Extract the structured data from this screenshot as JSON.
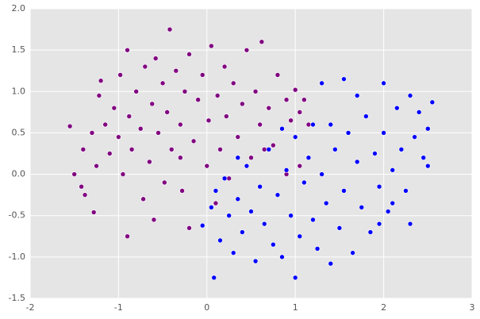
{
  "chart_data": {
    "type": "scatter",
    "xlim": [
      -2,
      3
    ],
    "ylim": [
      -1.5,
      2
    ],
    "xticks": [
      -2,
      -1,
      0,
      1,
      2,
      3
    ],
    "yticks": [
      -1.5,
      {
        "value": -1,
        "label": "-1.0"
      },
      -0.5,
      {
        "value": 0,
        "label": "0.0"
      },
      0.5,
      {
        "value": 1,
        "label": "1.0"
      },
      1.5,
      {
        "value": 2,
        "label": "2.0"
      }
    ],
    "grid": true,
    "series": [
      {
        "color": "#800080",
        "x": [
          -1.55,
          -1.5,
          -1.42,
          -1.4,
          -1.38,
          -1.3,
          -1.28,
          -1.25,
          -1.22,
          -1.2,
          -1.15,
          -1.1,
          -1.05,
          -1.0,
          -0.98,
          -0.95,
          -0.9,
          -0.9,
          -0.88,
          -0.85,
          -0.8,
          -0.75,
          -0.72,
          -0.7,
          -0.65,
          -0.62,
          -0.6,
          -0.58,
          -0.55,
          -0.5,
          -0.48,
          -0.45,
          -0.42,
          -0.4,
          -0.35,
          -0.3,
          -0.28,
          -0.25,
          -0.2,
          -0.2,
          -0.15,
          -0.1,
          -0.05,
          0.0,
          0.02,
          0.05,
          0.1,
          0.12,
          0.15,
          0.2,
          0.22,
          0.25,
          0.3,
          0.35,
          0.4,
          0.45,
          0.5,
          0.55,
          0.6,
          0.62,
          0.7,
          0.75,
          0.8,
          0.85,
          0.9,
          0.95,
          1.0,
          1.05,
          1.1,
          1.15,
          1.05,
          0.9,
          -0.3,
          0.65
        ],
        "y": [
          0.58,
          0.0,
          -0.15,
          0.3,
          -0.25,
          0.5,
          -0.46,
          0.1,
          0.95,
          1.13,
          0.6,
          0.25,
          0.8,
          0.45,
          1.2,
          0.0,
          -0.75,
          1.5,
          0.7,
          0.3,
          1.0,
          0.55,
          -0.3,
          1.3,
          0.15,
          0.85,
          -0.55,
          1.4,
          0.5,
          1.1,
          -0.1,
          0.75,
          1.75,
          0.3,
          1.25,
          0.6,
          -0.2,
          1.0,
          1.45,
          -0.65,
          0.4,
          0.9,
          1.2,
          0.1,
          0.65,
          1.55,
          -0.35,
          0.95,
          0.3,
          1.3,
          0.7,
          -0.05,
          1.1,
          0.45,
          0.85,
          1.5,
          0.2,
          1.0,
          0.6,
          1.6,
          0.8,
          0.35,
          1.2,
          0.55,
          0.9,
          0.65,
          1.02,
          0.75,
          0.9,
          0.6,
          0.1,
          0.0,
          0.2,
          0.3
        ]
      },
      {
        "color": "#0000ff",
        "x": [
          -0.05,
          0.05,
          0.08,
          0.1,
          0.15,
          0.2,
          0.25,
          0.3,
          0.35,
          0.4,
          0.45,
          0.5,
          0.55,
          0.6,
          0.65,
          0.7,
          0.75,
          0.8,
          0.85,
          0.9,
          0.95,
          1.0,
          1.0,
          1.05,
          1.1,
          1.15,
          1.2,
          1.25,
          1.3,
          1.3,
          1.35,
          1.4,
          1.45,
          1.5,
          1.55,
          1.55,
          1.6,
          1.65,
          1.7,
          1.75,
          1.8,
          1.85,
          1.9,
          1.95,
          2.0,
          2.0,
          2.05,
          2.1,
          2.15,
          2.2,
          2.25,
          2.3,
          2.35,
          2.4,
          2.45,
          2.5,
          2.55,
          2.5,
          2.3,
          1.2,
          0.85,
          1.7,
          0.35,
          1.95,
          2.1,
          1.4
        ],
        "y": [
          -0.62,
          -0.4,
          -1.25,
          -0.2,
          -0.8,
          -0.05,
          -0.5,
          -0.95,
          -0.3,
          -0.7,
          0.1,
          -0.45,
          -1.05,
          -0.15,
          -0.6,
          0.3,
          -0.85,
          -0.25,
          -1.0,
          0.05,
          -0.5,
          0.45,
          -1.25,
          -0.75,
          -0.1,
          0.2,
          -0.55,
          -0.9,
          0.0,
          1.1,
          -0.35,
          -1.08,
          0.3,
          -0.65,
          1.15,
          -0.2,
          0.5,
          -0.95,
          0.15,
          -0.4,
          0.7,
          -0.7,
          0.25,
          -0.15,
          1.1,
          0.5,
          -0.45,
          0.05,
          0.8,
          0.3,
          -0.2,
          0.95,
          0.45,
          0.75,
          0.2,
          0.55,
          0.87,
          0.1,
          -0.6,
          0.6,
          0.55,
          0.95,
          0.2,
          -0.6,
          -0.35,
          0.6
        ]
      }
    ]
  }
}
